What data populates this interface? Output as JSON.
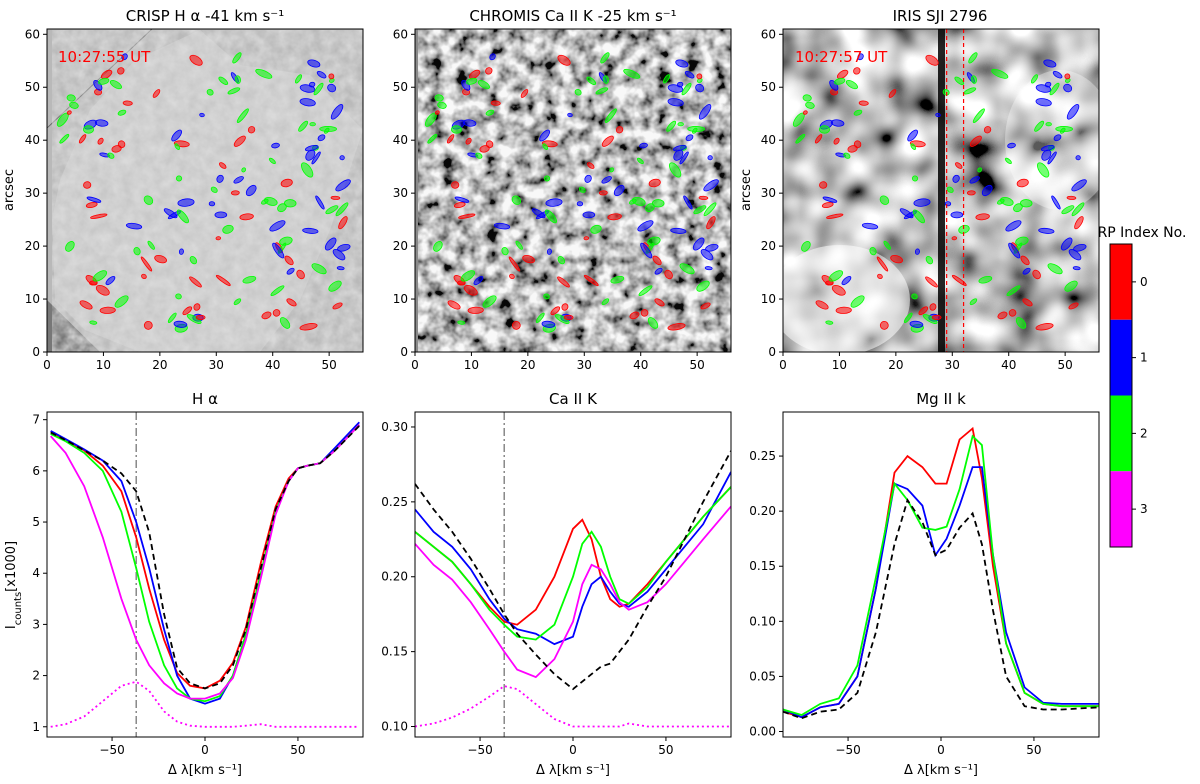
{
  "colorbar": {
    "title": "RP Index No.",
    "labels": [
      "0",
      "1",
      "2",
      "3"
    ],
    "colors": [
      "#ff0000",
      "#0000ff",
      "#00ff00",
      "#ff00ff"
    ]
  },
  "images": [
    {
      "title": "CRISP H α -41 km s⁻¹",
      "ylabel": "arcsec",
      "timestamp": "10:27:55 UT",
      "xticks": [
        "0",
        "10",
        "20",
        "30",
        "40",
        "50"
      ],
      "yticks": [
        "0",
        "10",
        "20",
        "30",
        "40",
        "50",
        "60"
      ],
      "xlim": [
        0,
        56
      ],
      "ylim": [
        0,
        61
      ],
      "style": "crisp"
    },
    {
      "title": "CHROMIS Ca II K -25 km s⁻¹",
      "ylabel": "",
      "timestamp": "",
      "xticks": [
        "0",
        "10",
        "20",
        "30",
        "40",
        "50"
      ],
      "yticks": [
        "0",
        "10",
        "20",
        "30",
        "40",
        "50",
        "60"
      ],
      "xlim": [
        0,
        56
      ],
      "ylim": [
        0,
        61
      ],
      "style": "chromis"
    },
    {
      "title": "IRIS SJI 2796",
      "ylabel": "arcsec",
      "timestamp": "10:27:57 UT",
      "xticks": [
        "0",
        "10",
        "20",
        "30",
        "40",
        "50"
      ],
      "yticks": [
        "0",
        "10",
        "20",
        "30",
        "40",
        "50",
        "60"
      ],
      "xlim": [
        0,
        56
      ],
      "ylim": [
        0,
        61
      ],
      "style": "iris",
      "slit_lines_x": [
        29,
        32
      ]
    }
  ],
  "chart_data": [
    {
      "type": "line",
      "title": "H α",
      "xlabel": "Δ λ[km s⁻¹]",
      "ylabel": "I_counts[x1000]",
      "xlim": [
        -85,
        85
      ],
      "ylim": [
        0.8,
        7.15
      ],
      "xticks": [
        -50,
        0,
        50
      ],
      "yticks": [
        1,
        2,
        3,
        4,
        5,
        6,
        7
      ],
      "vline_x": -37,
      "x": [
        -83,
        -75,
        -65,
        -55,
        -45,
        -37,
        -30,
        -22,
        -15,
        -8,
        0,
        8,
        15,
        22,
        30,
        38,
        45,
        50,
        55,
        62,
        70,
        83
      ],
      "series": [
        {
          "name": "0",
          "color": "#ff0000",
          "style": "solid",
          "values": [
            6.75,
            6.6,
            6.4,
            6.1,
            5.6,
            4.7,
            3.7,
            2.7,
            2.05,
            1.8,
            1.75,
            1.9,
            2.25,
            2.95,
            4.2,
            5.3,
            5.85,
            6.05,
            6.1,
            6.15,
            6.4,
            6.9
          ]
        },
        {
          "name": "1",
          "color": "#0000ff",
          "style": "solid",
          "values": [
            6.78,
            6.62,
            6.42,
            6.2,
            5.8,
            5.0,
            4.1,
            2.9,
            2.0,
            1.55,
            1.45,
            1.55,
            2.0,
            2.8,
            3.95,
            5.2,
            5.8,
            6.05,
            6.1,
            6.15,
            6.45,
            6.95
          ]
        },
        {
          "name": "2",
          "color": "#00ff00",
          "style": "solid",
          "values": [
            6.72,
            6.58,
            6.35,
            6.0,
            5.2,
            4.1,
            3.05,
            2.2,
            1.75,
            1.55,
            1.5,
            1.6,
            2.0,
            2.8,
            4.0,
            5.2,
            5.8,
            6.05,
            6.1,
            6.15,
            6.4,
            6.9
          ]
        },
        {
          "name": "3",
          "color": "#ff00ff",
          "style": "solid",
          "values": [
            6.68,
            6.35,
            5.7,
            4.7,
            3.5,
            2.7,
            2.2,
            1.85,
            1.65,
            1.55,
            1.55,
            1.65,
            1.95,
            2.7,
            3.9,
            5.15,
            5.8,
            6.05,
            6.1,
            6.15,
            6.4,
            6.9
          ]
        },
        {
          "name": "",
          "color": "#000000",
          "style": "dashed",
          "values": [
            6.75,
            6.6,
            6.4,
            6.2,
            5.95,
            5.6,
            4.8,
            3.2,
            2.15,
            1.85,
            1.75,
            1.85,
            2.2,
            2.9,
            4.1,
            5.25,
            5.8,
            6.05,
            6.1,
            6.15,
            6.4,
            6.88
          ]
        },
        {
          "name": "",
          "color": "#ff00ff",
          "style": "dotted",
          "values": [
            1.0,
            1.05,
            1.2,
            1.5,
            1.8,
            1.88,
            1.7,
            1.3,
            1.1,
            1.02,
            1.0,
            1.0,
            1.0,
            1.02,
            1.05,
            1.0,
            1.0,
            1.0,
            1.0,
            1.0,
            1.0,
            1.0
          ]
        }
      ]
    },
    {
      "type": "line",
      "title": "Ca II K",
      "xlabel": "Δ λ[km s⁻¹]",
      "ylabel": "",
      "xlim": [
        -85,
        85
      ],
      "ylim": [
        0.093,
        0.31
      ],
      "xticks": [
        -50,
        0,
        50
      ],
      "yticks": [
        0.1,
        0.15,
        0.2,
        0.25,
        0.3
      ],
      "vline_x": -37,
      "x": [
        -85,
        -75,
        -65,
        -55,
        -45,
        -37,
        -30,
        -20,
        -10,
        0,
        5,
        10,
        15,
        20,
        25,
        30,
        40,
        50,
        60,
        70,
        85
      ],
      "series": [
        {
          "name": "0",
          "color": "#ff0000",
          "style": "solid",
          "values": [
            0.23,
            0.22,
            0.21,
            0.195,
            0.18,
            0.17,
            0.168,
            0.178,
            0.2,
            0.232,
            0.238,
            0.225,
            0.2,
            0.185,
            0.18,
            0.182,
            0.195,
            0.21,
            0.225,
            0.24,
            0.26
          ]
        },
        {
          "name": "1",
          "color": "#0000ff",
          "style": "solid",
          "values": [
            0.245,
            0.23,
            0.22,
            0.205,
            0.185,
            0.172,
            0.165,
            0.162,
            0.155,
            0.16,
            0.18,
            0.195,
            0.2,
            0.19,
            0.182,
            0.18,
            0.19,
            0.205,
            0.22,
            0.235,
            0.27
          ]
        },
        {
          "name": "2",
          "color": "#00ff00",
          "style": "solid",
          "values": [
            0.23,
            0.22,
            0.21,
            0.195,
            0.178,
            0.168,
            0.16,
            0.158,
            0.168,
            0.2,
            0.222,
            0.23,
            0.22,
            0.2,
            0.185,
            0.182,
            0.193,
            0.21,
            0.225,
            0.24,
            0.26
          ]
        },
        {
          "name": "3",
          "color": "#ff00ff",
          "style": "solid",
          "values": [
            0.222,
            0.208,
            0.198,
            0.183,
            0.165,
            0.15,
            0.138,
            0.133,
            0.145,
            0.17,
            0.195,
            0.208,
            0.205,
            0.195,
            0.183,
            0.178,
            0.183,
            0.195,
            0.21,
            0.225,
            0.247
          ]
        },
        {
          "name": "",
          "color": "#000000",
          "style": "dashed",
          "values": [
            0.262,
            0.245,
            0.23,
            0.212,
            0.192,
            0.175,
            0.162,
            0.148,
            0.135,
            0.125,
            0.13,
            0.135,
            0.14,
            0.142,
            0.15,
            0.158,
            0.18,
            0.2,
            0.225,
            0.25,
            0.284
          ]
        },
        {
          "name": "",
          "color": "#ff00ff",
          "style": "dotted",
          "values": [
            0.1,
            0.102,
            0.106,
            0.112,
            0.12,
            0.127,
            0.125,
            0.115,
            0.105,
            0.1,
            0.1,
            0.1,
            0.1,
            0.1,
            0.1,
            0.102,
            0.1,
            0.1,
            0.1,
            0.1,
            0.1
          ]
        }
      ]
    },
    {
      "type": "line",
      "title": "Mg II k",
      "xlabel": "Δ λ[km s⁻¹]",
      "ylabel": "",
      "xlim": [
        -85,
        85
      ],
      "ylim": [
        -0.005,
        0.29
      ],
      "xticks": [
        -50,
        0,
        50
      ],
      "yticks": [
        0.0,
        0.05,
        0.1,
        0.15,
        0.2,
        0.25
      ],
      "vline_x": null,
      "x": [
        -85,
        -75,
        -65,
        -55,
        -45,
        -35,
        -25,
        -18,
        -10,
        -3,
        3,
        10,
        17,
        22,
        28,
        35,
        45,
        55,
        65,
        85
      ],
      "series": [
        {
          "name": "0",
          "color": "#ff0000",
          "style": "solid",
          "values": [
            0.018,
            0.013,
            0.022,
            0.025,
            0.05,
            0.13,
            0.235,
            0.25,
            0.24,
            0.225,
            0.225,
            0.265,
            0.275,
            0.23,
            0.15,
            0.08,
            0.035,
            0.025,
            0.023,
            0.023
          ]
        },
        {
          "name": "1",
          "color": "#0000ff",
          "style": "solid",
          "values": [
            0.02,
            0.013,
            0.022,
            0.025,
            0.05,
            0.13,
            0.225,
            0.22,
            0.205,
            0.16,
            0.175,
            0.205,
            0.24,
            0.24,
            0.16,
            0.09,
            0.04,
            0.026,
            0.025,
            0.025
          ]
        },
        {
          "name": "2",
          "color": "#00ff00",
          "style": "solid",
          "values": [
            0.02,
            0.015,
            0.025,
            0.03,
            0.06,
            0.14,
            0.225,
            0.21,
            0.185,
            0.183,
            0.186,
            0.22,
            0.268,
            0.26,
            0.16,
            0.08,
            0.035,
            0.025,
            0.023,
            0.023
          ]
        },
        {
          "name": "",
          "color": "#000000",
          "style": "dashed",
          "values": [
            0.018,
            0.012,
            0.018,
            0.02,
            0.035,
            0.09,
            0.17,
            0.21,
            0.19,
            0.16,
            0.165,
            0.185,
            0.198,
            0.17,
            0.11,
            0.05,
            0.023,
            0.02,
            0.02,
            0.022
          ]
        }
      ]
    }
  ]
}
